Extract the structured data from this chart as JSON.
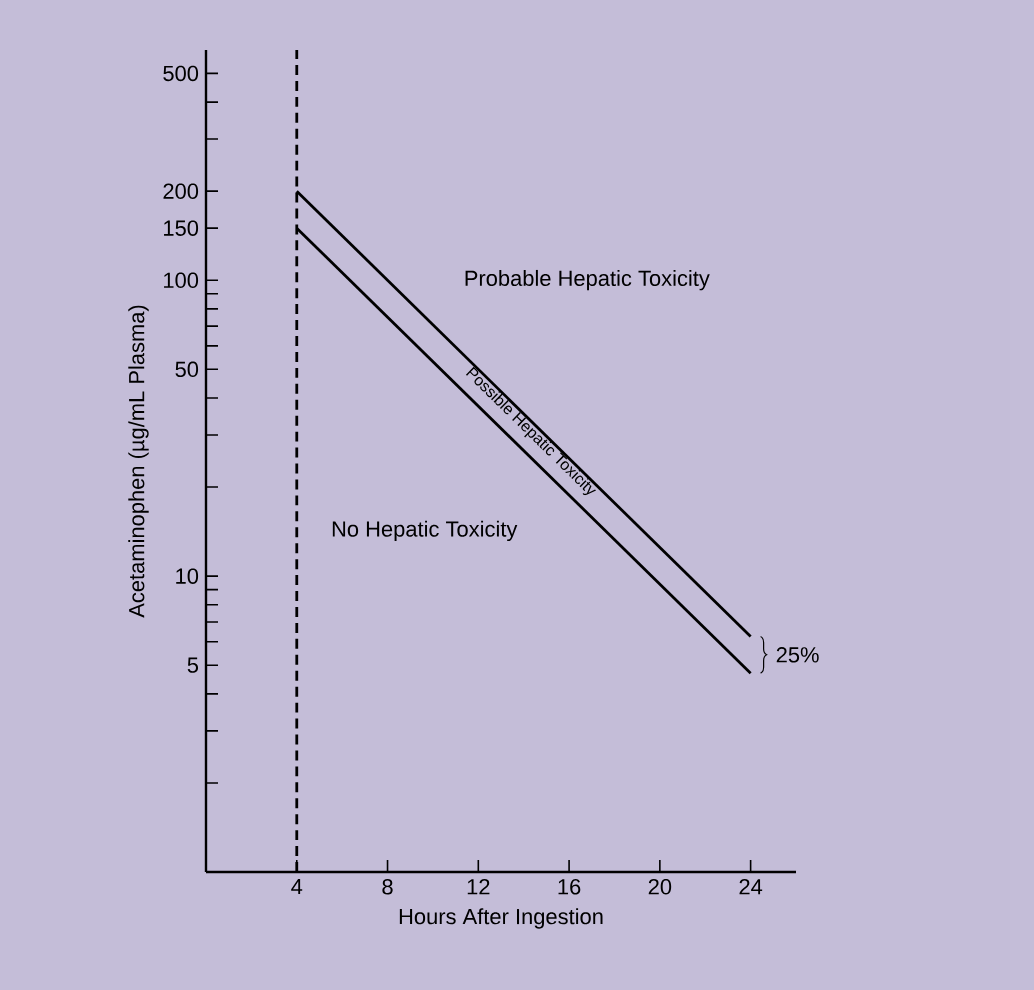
{
  "chart_data": {
    "type": "line",
    "xlabel": "Hours After Ingestion",
    "ylabel": "Acetaminophen (µg/mL Plasma)",
    "x": [
      4,
      24
    ],
    "series": [
      {
        "color": "#000000",
        "values": [
          200,
          6.25
        ]
      },
      {
        "color": "#000000",
        "values": [
          150,
          4.7
        ]
      }
    ],
    "ref_lines": [
      {
        "axis": "x",
        "value": 4,
        "line_style": "dashed",
        "color": "#000000"
      }
    ],
    "xlim": [
      0,
      26
    ],
    "xticks": [
      4,
      8,
      12,
      16,
      20,
      24
    ],
    "ylim": [
      1,
      600
    ],
    "log": true,
    "marker": "none",
    "line_style": "solid",
    "yticks": [
      {
        "value": 2,
        "label": null
      },
      {
        "value": 3,
        "label": null
      },
      {
        "value": 4,
        "label": null
      },
      5,
      {
        "value": 6,
        "label": null
      },
      {
        "value": 7,
        "label": null
      },
      {
        "value": 8,
        "label": null
      },
      {
        "value": 9,
        "label": null
      },
      10,
      {
        "value": 20,
        "label": null
      },
      {
        "value": 30,
        "label": null
      },
      {
        "value": 40,
        "label": null
      },
      50,
      {
        "value": 60,
        "label": null
      },
      {
        "value": 70,
        "label": null
      },
      {
        "value": 80,
        "label": null
      },
      {
        "value": 90,
        "label": null
      },
      100,
      150,
      200,
      {
        "value": 300,
        "label": null
      },
      {
        "value": 400,
        "label": null
      },
      500
    ],
    "annotations": [
      "Probable Hepatic Toxicity",
      "Possible Hepatic Toxicity",
      "No Hepatic Toxicity",
      "25%"
    ]
  }
}
